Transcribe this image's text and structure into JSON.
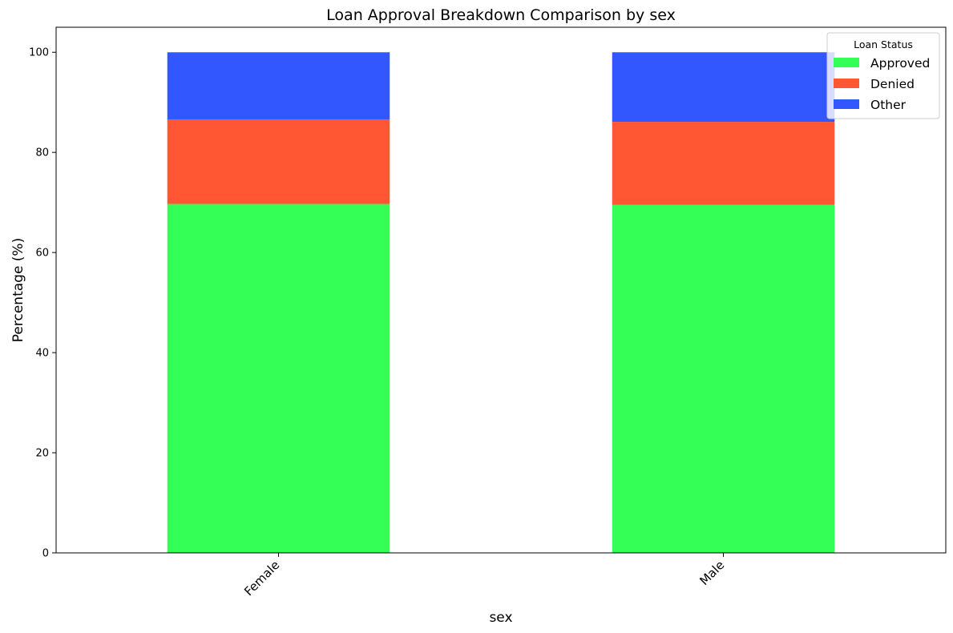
{
  "chart_data": {
    "type": "bar",
    "stacked": true,
    "title": "Loan Approval Breakdown Comparison by sex",
    "xlabel": "sex",
    "ylabel": "Percentage (%)",
    "categories": [
      "Female",
      "Male"
    ],
    "ylim": [
      0,
      105
    ],
    "yticks": [
      0,
      20,
      40,
      60,
      80,
      100
    ],
    "grid": false,
    "legend": {
      "title": "Loan Status",
      "placement": "top-right"
    },
    "series": [
      {
        "name": "Approved",
        "values": [
          69.7,
          69.5
        ],
        "color": "#33ff57"
      },
      {
        "name": "Denied",
        "values": [
          16.9,
          16.6
        ],
        "color": "#ff5733"
      },
      {
        "name": "Other",
        "values": [
          13.4,
          13.9
        ],
        "color": "#3357ff"
      }
    ]
  }
}
